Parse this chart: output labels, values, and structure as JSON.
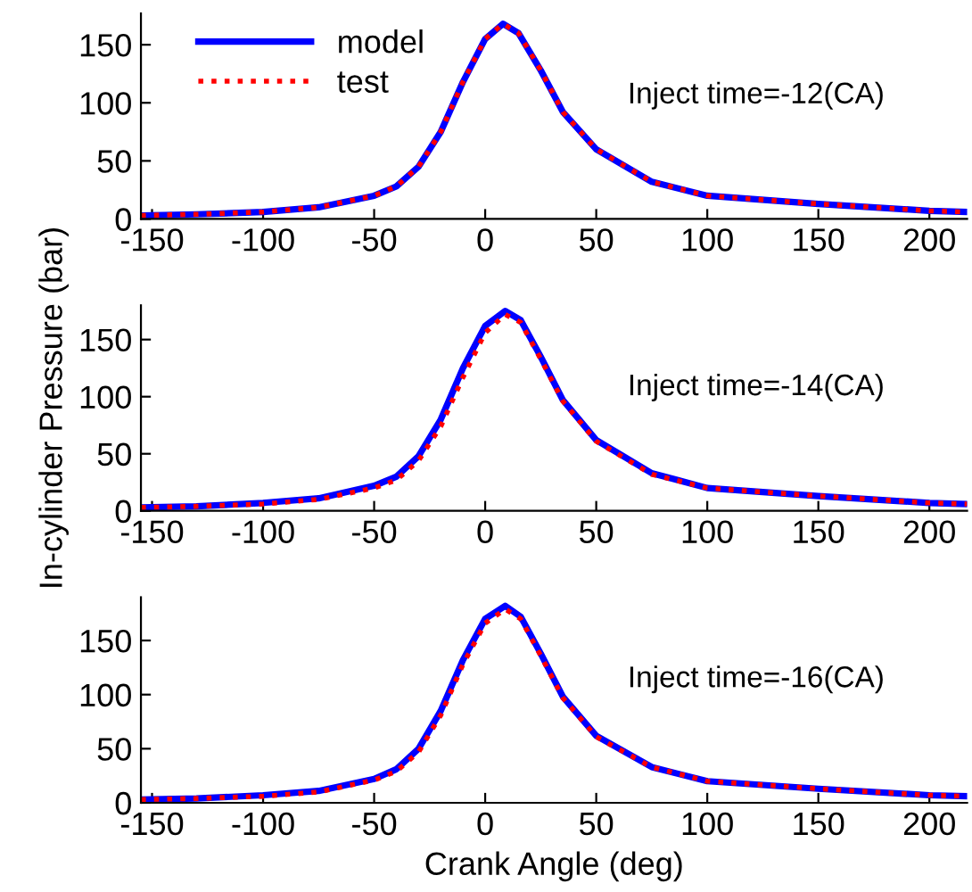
{
  "chart_data": [
    {
      "type": "line",
      "xlim": [
        -155,
        217
      ],
      "ylim": [
        0,
        177
      ],
      "xticks": [
        -150,
        -100,
        -50,
        0,
        50,
        100,
        150,
        200
      ],
      "yticks": [
        0,
        50,
        100,
        150
      ],
      "legend": "top left",
      "grid": false,
      "annotations": [
        "Inject time=-12(CA)"
      ],
      "series": [
        {
          "name": "model",
          "color": "#0000ff",
          "line_style": "solid",
          "x": [
            -155,
            -130,
            -100,
            -75,
            -50,
            -40,
            -30,
            -20,
            -10,
            0,
            8,
            15,
            25,
            35,
            50,
            75,
            100,
            150,
            200,
            217
          ],
          "values": [
            3,
            4,
            6,
            10,
            20,
            28,
            45,
            75,
            118,
            155,
            168,
            160,
            128,
            92,
            60,
            32,
            20,
            13,
            7,
            6
          ]
        },
        {
          "name": "test",
          "color": "#ff0000",
          "line_style": "dotted",
          "x": [
            -155,
            -130,
            -100,
            -75,
            -50,
            -40,
            -30,
            -20,
            -10,
            0,
            8,
            15,
            25,
            35,
            50,
            75,
            100,
            150,
            200,
            217
          ],
          "values": [
            3,
            4,
            6,
            10,
            20,
            28,
            45,
            75,
            118,
            155,
            168,
            160,
            128,
            92,
            60,
            32,
            20,
            13,
            7,
            6
          ]
        }
      ]
    },
    {
      "type": "line",
      "xlim": [
        -155,
        217
      ],
      "ylim": [
        0,
        180
      ],
      "xticks": [
        -150,
        -100,
        -50,
        0,
        50,
        100,
        150,
        200
      ],
      "yticks": [
        0,
        50,
        100,
        150
      ],
      "legend": false,
      "grid": false,
      "ylabel": "In-cylinder Pressure (bar)",
      "annotations": [
        "Inject time=-14(CA)"
      ],
      "series": [
        {
          "color": "#0000ff",
          "line_style": "solid",
          "x": [
            -155,
            -130,
            -100,
            -75,
            -50,
            -40,
            -30,
            -20,
            -10,
            0,
            9,
            16,
            25,
            35,
            50,
            75,
            100,
            150,
            200,
            217
          ],
          "values": [
            3,
            4,
            7,
            11,
            22,
            30,
            48,
            80,
            125,
            162,
            175,
            167,
            135,
            97,
            62,
            33,
            20,
            13,
            7,
            6
          ]
        },
        {
          "color": "#ff0000",
          "line_style": "dotted",
          "x": [
            -155,
            -130,
            -100,
            -75,
            -50,
            -40,
            -30,
            -20,
            -10,
            0,
            9,
            16,
            25,
            35,
            50,
            75,
            100,
            150,
            200,
            217
          ],
          "values": [
            3,
            4,
            6,
            10,
            20,
            27,
            44,
            74,
            117,
            156,
            172,
            165,
            133,
            96,
            61,
            32,
            20,
            13,
            7,
            6
          ]
        }
      ]
    },
    {
      "type": "line",
      "xlim": [
        -155,
        217
      ],
      "ylim": [
        0,
        190
      ],
      "xticks": [
        -150,
        -100,
        -50,
        0,
        50,
        100,
        150,
        200
      ],
      "yticks": [
        0,
        50,
        100,
        150
      ],
      "legend": false,
      "grid": false,
      "xlabel": "Crank Angle (deg)",
      "annotations": [
        "Inject time=-16(CA)"
      ],
      "series": [
        {
          "color": "#0000ff",
          "line_style": "solid",
          "x": [
            -155,
            -130,
            -100,
            -75,
            -50,
            -40,
            -30,
            -20,
            -10,
            0,
            9,
            16,
            25,
            35,
            50,
            75,
            100,
            150,
            200,
            217
          ],
          "values": [
            3,
            4,
            7,
            11,
            22,
            31,
            50,
            85,
            132,
            170,
            182,
            172,
            138,
            98,
            62,
            33,
            20,
            13,
            7,
            6
          ]
        },
        {
          "color": "#ff0000",
          "line_style": "dotted",
          "x": [
            -155,
            -130,
            -100,
            -75,
            -50,
            -40,
            -30,
            -20,
            -10,
            0,
            9,
            16,
            25,
            35,
            50,
            75,
            100,
            150,
            200,
            217
          ],
          "values": [
            3,
            4,
            6,
            10,
            21,
            29,
            47,
            81,
            128,
            166,
            179,
            170,
            136,
            97,
            61,
            33,
            20,
            13,
            7,
            6
          ]
        }
      ]
    }
  ]
}
